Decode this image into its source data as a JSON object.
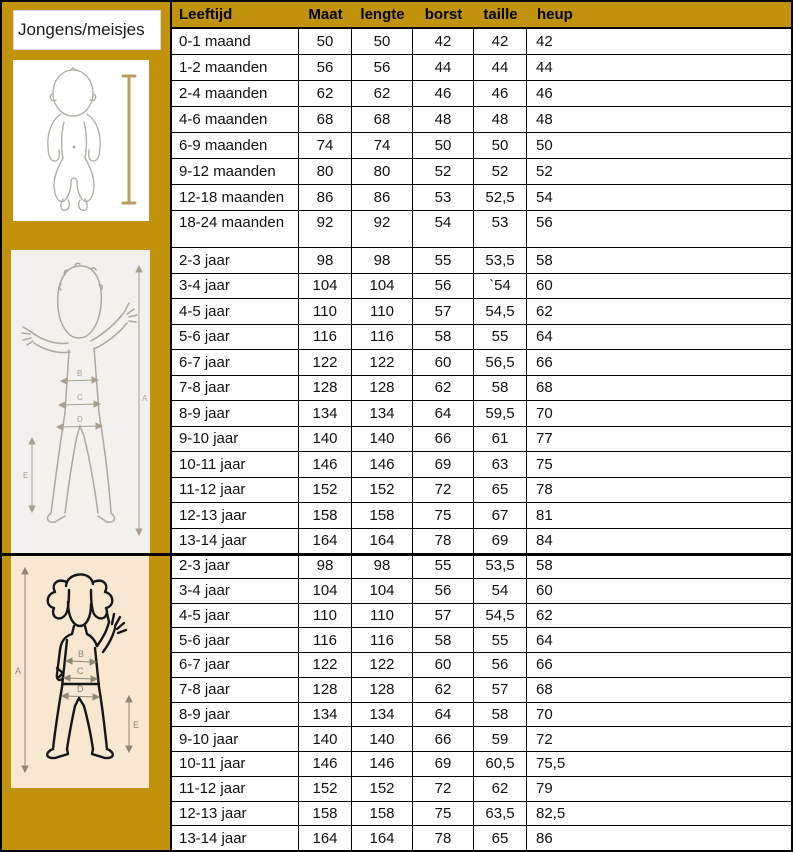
{
  "sidebar": {
    "label": "Jongens/meisjes",
    "figures": [
      {
        "name": "baby-figure",
        "description": "baby outline with height measuring rod"
      },
      {
        "name": "boy-figure",
        "description": "boy outline with measurement arrows"
      },
      {
        "name": "girl-figure",
        "description": "girl outline with measurement arrows"
      }
    ],
    "measure_labels": {
      "a": "A",
      "b": "B",
      "c": "C",
      "d": "D",
      "e": "E"
    }
  },
  "table": {
    "headers": [
      "Leeftijd",
      "Maat",
      "lengte",
      "borst",
      "taille",
      "heup"
    ],
    "sections": [
      {
        "id": "baby",
        "tall_last": true,
        "rows": [
          [
            "0-1 maand",
            "50",
            "50",
            "42",
            "42",
            "42"
          ],
          [
            "1-2 maanden",
            "56",
            "56",
            "44",
            "44",
            "44"
          ],
          [
            "2-4 maanden",
            "62",
            "62",
            "46",
            "46",
            "46"
          ],
          [
            "4-6 maanden",
            "68",
            "68",
            "48",
            "48",
            "48"
          ],
          [
            "6-9 maanden",
            "74",
            "74",
            "50",
            "50",
            "50"
          ],
          [
            "9-12 maanden",
            "80",
            "80",
            "52",
            "52",
            "52"
          ],
          [
            "12-18 maanden",
            "86",
            "86",
            "53",
            "52,5",
            "54"
          ],
          [
            "18-24 maanden",
            "92",
            "92",
            "54",
            "53",
            "56"
          ]
        ]
      },
      {
        "id": "boys",
        "tall_last": false,
        "rows": [
          [
            "2-3 jaar",
            "98",
            "98",
            "55",
            "53,5",
            "58"
          ],
          [
            "3-4 jaar",
            "104",
            "104",
            "56",
            "`54",
            "60"
          ],
          [
            "4-5 jaar",
            "110",
            "110",
            "57",
            "54,5",
            "62"
          ],
          [
            "5-6 jaar",
            "116",
            "116",
            "58",
            "55",
            "64"
          ],
          [
            "6-7 jaar",
            "122",
            "122",
            "60",
            "56,5",
            "66"
          ],
          [
            "7-8 jaar",
            "128",
            "128",
            "62",
            "58",
            "68"
          ],
          [
            "8-9 jaar",
            "134",
            "134",
            "64",
            "59,5",
            "70"
          ],
          [
            "9-10 jaar",
            "140",
            "140",
            "66",
            "61",
            "77"
          ],
          [
            "10-11 jaar",
            "146",
            "146",
            "69",
            "63",
            "75"
          ],
          [
            "11-12 jaar",
            "152",
            "152",
            "72",
            "65",
            "78"
          ],
          [
            "12-13 jaar",
            "158",
            "158",
            "75",
            "67",
            "81"
          ],
          [
            "13-14 jaar",
            "164",
            "164",
            "78",
            "69",
            "84"
          ]
        ]
      },
      {
        "id": "girls",
        "tall_last": false,
        "rows": [
          [
            "2-3 jaar",
            "98",
            "98",
            "55",
            "53,5",
            "58"
          ],
          [
            "3-4 jaar",
            "104",
            "104",
            "56",
            "54",
            "60"
          ],
          [
            "4-5 jaar",
            "110",
            "110",
            "57",
            "54,5",
            "62"
          ],
          [
            "5-6 jaar",
            "116",
            "116",
            "58",
            "55",
            "64"
          ],
          [
            "6-7 jaar",
            "122",
            "122",
            "60",
            "56",
            "66"
          ],
          [
            "7-8 jaar",
            "128",
            "128",
            "62",
            "57",
            "68"
          ],
          [
            "8-9 jaar",
            "134",
            "134",
            "64",
            "58",
            "70"
          ],
          [
            "9-10 jaar",
            "140",
            "140",
            "66",
            "59",
            "72"
          ],
          [
            "10-11 jaar",
            "146",
            "146",
            "69",
            "60,5",
            "75,5"
          ],
          [
            "11-12 jaar",
            "152",
            "152",
            "72",
            "62",
            "79"
          ],
          [
            "12-13 jaar",
            "158",
            "158",
            "75",
            "63,5",
            "82,5"
          ],
          [
            "13-14 jaar",
            "164",
            "164",
            "78",
            "65",
            "86"
          ]
        ]
      }
    ]
  },
  "colors": {
    "gold": "#C1920B",
    "border": "#000000",
    "baby_box_bg": "#FFFFFF",
    "boy_box_bg": "#F2F1EE",
    "girl_box_bg": "#F8E8D1",
    "measure_rod": "#BD9E62"
  }
}
